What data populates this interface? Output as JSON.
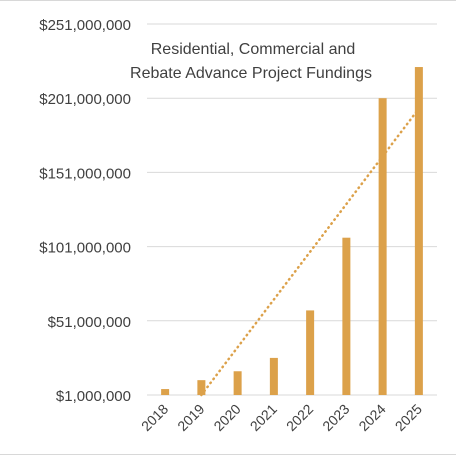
{
  "chart_data": {
    "type": "bar",
    "title_line1": "Residential, Commercial and",
    "title_line2": "Rebate Advance Project Fundings",
    "xlabel": "",
    "ylabel": "",
    "categories": [
      "2018",
      "2019",
      "2020",
      "2021",
      "2022",
      "2023",
      "2024",
      "2025"
    ],
    "values": [
      5000000,
      11000000,
      17000000,
      26000000,
      58000000,
      107000000,
      201000000,
      222000000
    ],
    "ylim": [
      1000000,
      251000000
    ],
    "y_ticks": [
      1000000,
      51000000,
      101000000,
      151000000,
      201000000,
      251000000
    ],
    "y_tick_labels": [
      "$1,000,000",
      "$51,000,000",
      "$101,000,000",
      "$151,000,000",
      "$201,000,000",
      "$251,000,000"
    ],
    "trendline": {
      "type": "linear",
      "style": "dotted",
      "start": {
        "x": "2019",
        "value": 1000000
      },
      "end": {
        "x": "2025",
        "value": 194000000
      }
    },
    "grid": true,
    "bar_color": "#dca14a",
    "trend_color": "#dca14a",
    "grid_color": "#d9d9d9",
    "text_color": "#404040"
  }
}
